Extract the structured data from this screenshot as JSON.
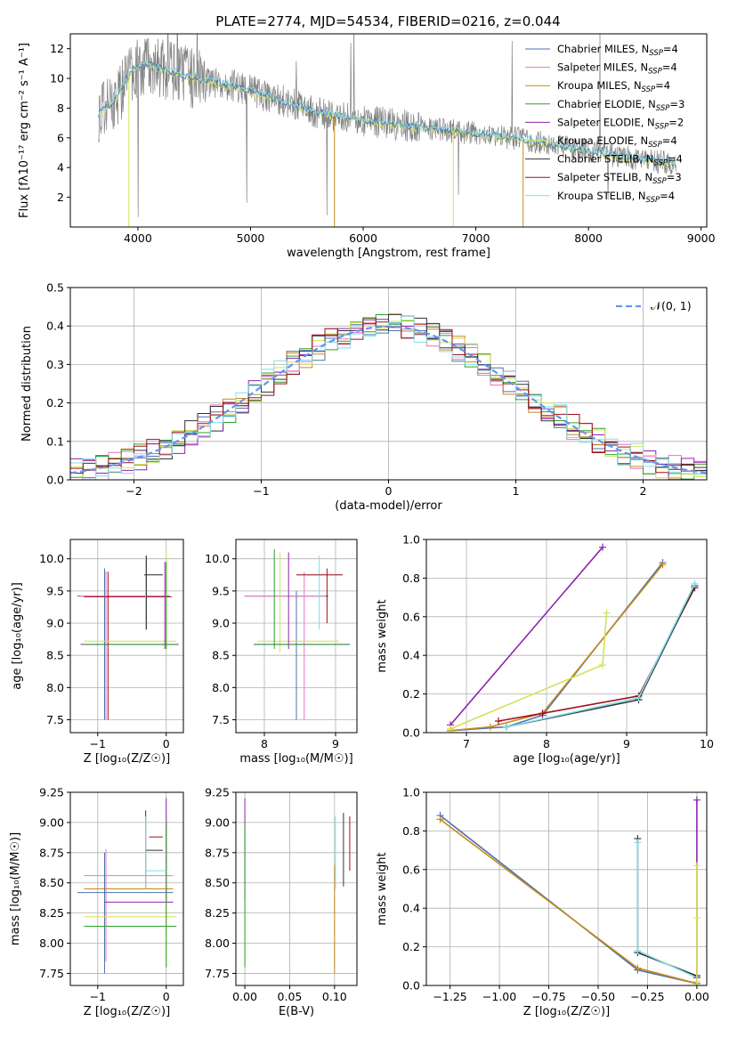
{
  "figure": {
    "title": "PLATE=2774, MJD=54534, FIBERID=0216, z=0.044"
  },
  "colors": {
    "chabrier_miles": "#4c72b0",
    "salpeter_miles": "#e377c2",
    "kroupa_miles": "#c58a1a",
    "chabrier_elodie": "#2ca02c",
    "salpeter_elodie": "#8e24aa",
    "kroupa_elodie": "#d4e157",
    "chabrier_stelib": "#333333",
    "salpeter_stelib": "#a50f15",
    "kroupa_stelib": "#80deea",
    "data": "#808080",
    "gauss": "#6495ed"
  },
  "chart_data": [
    {
      "id": "spectrum",
      "type": "line",
      "xlabel": "wavelength [Angstrom, rest frame]",
      "ylabel": "Flux [fλ10⁻¹⁷ erg cm⁻² s⁻¹ A⁻¹]",
      "xlim": [
        3400,
        9050
      ],
      "ylim": [
        0,
        13
      ],
      "xticks": [
        4000,
        5000,
        6000,
        7000,
        8000,
        9000
      ],
      "yticks": [
        2,
        4,
        6,
        8,
        10,
        12
      ],
      "legend_position": "top-right",
      "legend": [
        {
          "label": "Chabrier MILES, N",
          "sub": "SSP",
          "tail": "=4",
          "color": "chabrier_miles"
        },
        {
          "label": "Salpeter MILES, N",
          "sub": "SSP",
          "tail": "=4",
          "color": "salpeter_miles"
        },
        {
          "label": "Kroupa MILES, N",
          "sub": "SSP",
          "tail": "=4",
          "color": "kroupa_miles"
        },
        {
          "label": "Chabrier ELODIE, N",
          "sub": "SSP",
          "tail": "=3",
          "color": "chabrier_elodie"
        },
        {
          "label": "Salpeter ELODIE, N",
          "sub": "SSP",
          "tail": "=2",
          "color": "salpeter_elodie"
        },
        {
          "label": "Kroupa ELODIE, N",
          "sub": "SSP",
          "tail": "=4",
          "color": "kroupa_elodie"
        },
        {
          "label": "Chabrier STELIB, N",
          "sub": "SSP",
          "tail": "=4",
          "color": "chabrier_stelib"
        },
        {
          "label": "Salpeter STELIB, N",
          "sub": "SSP",
          "tail": "=3",
          "color": "salpeter_stelib"
        },
        {
          "label": "Kroupa STELIB, N",
          "sub": "SSP",
          "tail": "=4",
          "color": "kroupa_stelib"
        }
      ],
      "continuum": [
        [
          3650,
          7.6
        ],
        [
          3800,
          8.6
        ],
        [
          3950,
          10.6
        ],
        [
          4100,
          10.9
        ],
        [
          4400,
          10.2
        ],
        [
          4800,
          9.6
        ],
        [
          5200,
          8.7
        ],
        [
          5600,
          7.7
        ],
        [
          6000,
          7.2
        ],
        [
          6500,
          6.7
        ],
        [
          7000,
          6.3
        ],
        [
          7500,
          5.8
        ],
        [
          8000,
          5.1
        ],
        [
          8500,
          4.5
        ],
        [
          8750,
          4.3
        ]
      ]
    },
    {
      "id": "residuals",
      "type": "line",
      "xlabel": "(data-model)/error",
      "ylabel": "Normed distribution",
      "xlim": [
        -2.5,
        2.5
      ],
      "ylim": [
        0,
        0.5
      ],
      "xticks": [
        -2,
        -1,
        0,
        1,
        2
      ],
      "yticks": [
        0.0,
        0.1,
        0.2,
        0.3,
        0.4,
        0.5
      ],
      "legend_position": "top-right",
      "legend_label": "𝒩(0, 1)"
    },
    {
      "id": "age_vs_z",
      "type": "scatter",
      "xlabel": "Z [log₁₀(Z/Z☉)]",
      "ylabel": "age  [log₁₀(age/yr)]",
      "xlim": [
        -1.4,
        0.25
      ],
      "ylim": [
        7.3,
        10.3
      ],
      "xticks": [
        -1,
        0
      ],
      "yticks": [
        7.5,
        8.0,
        8.5,
        9.0,
        9.5,
        10.0
      ]
    },
    {
      "id": "age_vs_mass",
      "type": "scatter",
      "xlabel": "mass [log₁₀(M/M☉)]",
      "ylabel": "",
      "xlim": [
        7.6,
        9.3
      ],
      "ylim": [
        7.3,
        10.3
      ],
      "xticks": [
        8,
        9
      ],
      "yticks": [
        7.5,
        8.0,
        8.5,
        9.0,
        9.5,
        10.0
      ]
    },
    {
      "id": "weight_vs_age",
      "type": "line",
      "xlabel": "age  [log₁₀(age/yr)]",
      "ylabel": "mass weight",
      "xlim": [
        6.5,
        10
      ],
      "ylim": [
        0,
        1
      ],
      "xticks": [
        7,
        8,
        9,
        10
      ],
      "yticks": [
        0.0,
        0.2,
        0.4,
        0.6,
        0.8,
        1.0
      ],
      "series": [
        {
          "color": "salpeter_elodie",
          "x": [
            6.8,
            8.7
          ],
          "y": [
            0.04,
            0.96
          ]
        },
        {
          "color": "chabrier_miles",
          "x": [
            6.8,
            7.5,
            7.95,
            9.45
          ],
          "y": [
            0.01,
            0.03,
            0.09,
            0.88
          ]
        },
        {
          "color": "kroupa_miles",
          "x": [
            6.8,
            7.3,
            7.95,
            9.45
          ],
          "y": [
            0.01,
            0.03,
            0.1,
            0.87
          ]
        },
        {
          "color": "salpeter_stelib",
          "x": [
            7.4,
            7.95,
            9.15,
            9.85
          ],
          "y": [
            0.06,
            0.1,
            0.19,
            0.75
          ]
        },
        {
          "color": "kroupa_elodie",
          "x": [
            6.8,
            8.7,
            8.75
          ],
          "y": [
            0.02,
            0.35,
            0.62
          ]
        },
        {
          "color": "chabrier_stelib",
          "x": [
            7.5,
            9.15,
            9.85
          ],
          "y": [
            0.03,
            0.17,
            0.76
          ]
        },
        {
          "color": "kroupa_stelib",
          "x": [
            7.5,
            9.15,
            9.85
          ],
          "y": [
            0.03,
            0.18,
            0.77
          ]
        }
      ]
    },
    {
      "id": "mass_vs_z",
      "type": "scatter",
      "xlabel": "Z [log₁₀(Z/Z☉)]",
      "ylabel": "mass [log₁₀(M/M☉)]",
      "xlim": [
        -1.4,
        0.25
      ],
      "ylim": [
        7.65,
        9.25
      ],
      "xticks": [
        -1,
        0
      ],
      "yticks": [
        7.75,
        8.0,
        8.25,
        8.5,
        8.75,
        9.0,
        9.25
      ]
    },
    {
      "id": "mass_vs_ebv",
      "type": "scatter",
      "xlabel": "E(B-V)",
      "ylabel": "",
      "xlim": [
        -0.01,
        0.125
      ],
      "ylim": [
        7.65,
        9.25
      ],
      "xticks": [
        0.0,
        0.05,
        0.1
      ],
      "xticklabels": [
        "0.00",
        "0.05",
        "0.10"
      ],
      "yticks": [
        7.75,
        8.0,
        8.25,
        8.5,
        8.75,
        9.0,
        9.25
      ]
    },
    {
      "id": "weight_vs_z",
      "type": "line",
      "xlabel": "Z [log₁₀(Z/Z☉)]",
      "ylabel": "mass weight",
      "xlim": [
        -1.37,
        0.05
      ],
      "ylim": [
        0,
        1
      ],
      "xticks": [
        -1.25,
        -1.0,
        -0.75,
        -0.5,
        -0.25,
        0.0
      ],
      "xticklabels": [
        "−1.25",
        "−1.00",
        "−0.75",
        "−0.50",
        "−0.25",
        "0.00"
      ],
      "yticks": [
        0.0,
        0.2,
        0.4,
        0.6,
        0.8,
        1.0
      ],
      "series": [
        {
          "color": "chabrier_miles",
          "x": [
            -1.3,
            -0.3,
            0.0
          ],
          "y": [
            0.88,
            0.08,
            0.01
          ]
        },
        {
          "color": "kroupa_miles",
          "x": [
            -1.3,
            -0.3,
            0.0
          ],
          "y": [
            0.86,
            0.09,
            0.01
          ]
        },
        {
          "color": "chabrier_stelib",
          "x": [
            -0.3,
            -0.3,
            0.0
          ],
          "y": [
            0.76,
            0.17,
            0.05
          ]
        },
        {
          "color": "kroupa_stelib",
          "x": [
            -0.3,
            -0.3,
            0.0
          ],
          "y": [
            0.74,
            0.18,
            0.04
          ]
        },
        {
          "color": "salpeter_elodie",
          "x": [
            0.0,
            0.0
          ],
          "y": [
            0.96,
            0.04
          ]
        },
        {
          "color": "kroupa_elodie",
          "x": [
            0.0,
            0.0,
            0.0
          ],
          "y": [
            0.62,
            0.35,
            0.02
          ]
        }
      ]
    }
  ]
}
